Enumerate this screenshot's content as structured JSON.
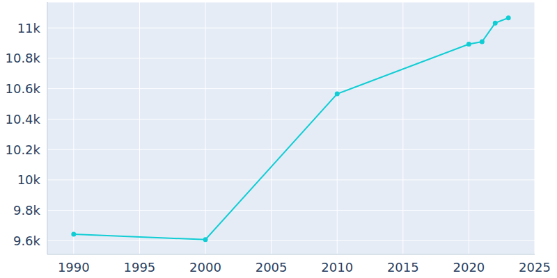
{
  "chart_data": {
    "type": "line",
    "x": [
      1990,
      2000,
      2010,
      2020,
      2021,
      2022,
      2023
    ],
    "values": [
      9643,
      9607,
      10566,
      10893,
      10909,
      11032,
      11066
    ],
    "color": "#11cdd4",
    "marker": "circle",
    "xlim": [
      1988,
      2025
    ],
    "xticks": [
      1990,
      1995,
      2000,
      2005,
      2010,
      2015,
      2020,
      2025
    ],
    "ylim": [
      9510,
      11170
    ],
    "yticks": [
      {
        "value": 9600,
        "label": "9.6k"
      },
      {
        "value": 9800,
        "label": "9.8k"
      },
      {
        "value": 10000,
        "label": "10k"
      },
      {
        "value": 10200,
        "label": "10.2k"
      },
      {
        "value": 10400,
        "label": "10.4k"
      },
      {
        "value": 10600,
        "label": "10.6k"
      },
      {
        "value": 10800,
        "label": "10.8k"
      },
      {
        "value": 11000,
        "label": "11k"
      }
    ],
    "grid": true
  }
}
